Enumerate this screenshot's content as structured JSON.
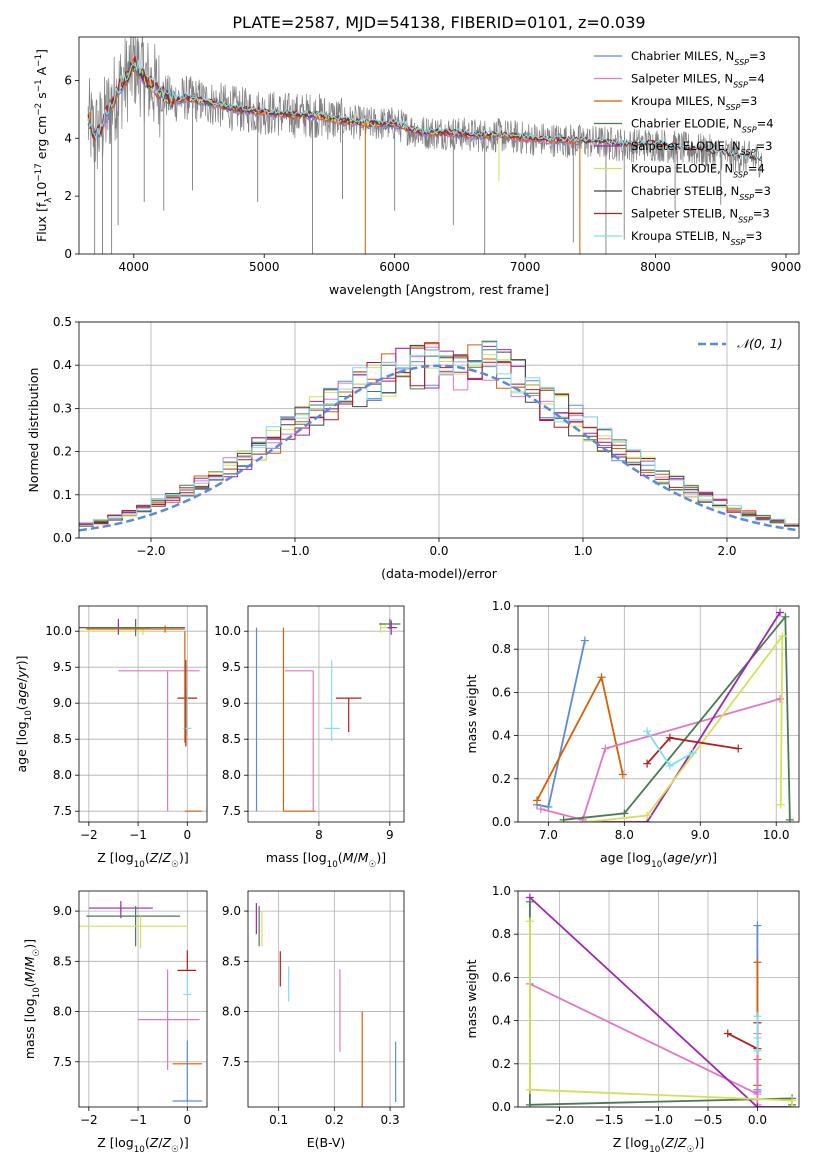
{
  "figure_title": "PLATE=2587, MJD=54138, FIBERID=0101, z=0.039",
  "colors": {
    "grid": "#b0b0b0",
    "data": "#808080",
    "norm": "#5b8bd8"
  },
  "chart_data": [
    {
      "id": "spectrum",
      "type": "line",
      "xlabel": "wavelength [Angstrom, rest frame]",
      "ylabel": "Flux [f_λ 10^-17 erg cm^-2 s^-1 A^-1]",
      "xlim": [
        3580,
        9100
      ],
      "ylim": [
        0,
        7.5
      ],
      "xticks": [
        4000,
        5000,
        6000,
        7000,
        8000,
        9000
      ],
      "yticks": [
        0,
        2,
        4,
        6
      ],
      "grid": false,
      "legend": "top-right",
      "series": [
        {
          "name": "Chabrier MILES, N_SSP=3",
          "color": "#5b8bd8",
          "x_range": [
            3650,
            7420
          ]
        },
        {
          "name": "Salpeter MILES, N_SSP=4",
          "color": "#e377c2",
          "x_range": [
            3650,
            7420
          ]
        },
        {
          "name": "Kroupa MILES, N_SSP=3",
          "color": "#d95f02",
          "x_range": [
            3650,
            7420
          ]
        },
        {
          "name": "Chabrier ELODIE, N_SSP=4",
          "color": "#4a7a52",
          "x_range": [
            3900,
            6800
          ]
        },
        {
          "name": "Salpeter ELODIE, N_SSP=3",
          "color": "#9c27b0",
          "x_range": [
            3900,
            6800
          ]
        },
        {
          "name": "Kroupa ELODIE, N_SSP=4",
          "color": "#d4e157",
          "x_range": [
            3900,
            6800
          ]
        },
        {
          "name": "Chabrier STELIB, N_SSP=3",
          "color": "#444444",
          "x_range": [
            3650,
            8820
          ]
        },
        {
          "name": "Salpeter STELIB, N_SSP=3",
          "color": "#b71c1c",
          "x_range": [
            3650,
            8820
          ]
        },
        {
          "name": "Kroupa STELIB, N_SSP=3",
          "color": "#80deea",
          "x_range": [
            3650,
            8820
          ]
        }
      ],
      "continuum": {
        "x": [
          3650,
          3700,
          3750,
          3800,
          3850,
          3900,
          3950,
          4000,
          4050,
          4100,
          4200,
          4300,
          4400,
          4500,
          4600,
          4800,
          5000,
          5200,
          5400,
          5600,
          5800,
          6000,
          6200,
          6400,
          6600,
          6800,
          7000,
          7200,
          7400,
          7600,
          7800,
          8000,
          8200,
          8400,
          8600,
          8800
        ],
        "y": [
          4.6,
          4.1,
          4.3,
          4.9,
          5.4,
          5.8,
          6.1,
          6.6,
          6.3,
          6.0,
          5.6,
          5.3,
          5.4,
          5.3,
          5.2,
          5.0,
          4.9,
          4.8,
          4.8,
          4.6,
          4.5,
          4.5,
          4.2,
          4.2,
          4.1,
          4.1,
          4.0,
          3.95,
          3.9,
          3.85,
          3.75,
          3.8,
          3.65,
          3.55,
          3.4,
          3.25
        ]
      },
      "data_spikes": [
        {
          "x": 3700,
          "y": 0
        },
        {
          "x": 3760,
          "y": 0
        },
        {
          "x": 3830,
          "y": 0
        },
        {
          "x": 3880,
          "y": 1.0
        },
        {
          "x": 4080,
          "y": 1.8
        },
        {
          "x": 4230,
          "y": 1.5
        },
        {
          "x": 4450,
          "y": 2.2
        },
        {
          "x": 4950,
          "y": 1.8
        },
        {
          "x": 5370,
          "y": 0
        },
        {
          "x": 5600,
          "y": 1.9
        },
        {
          "x": 6000,
          "y": 1.5
        },
        {
          "x": 6450,
          "y": 1.0
        },
        {
          "x": 6690,
          "y": 0
        },
        {
          "x": 7370,
          "y": 0.4
        },
        {
          "x": 7620,
          "y": 0
        },
        {
          "x": 7760,
          "y": 0.5
        },
        {
          "x": 8150,
          "y": 1.5
        },
        {
          "x": 8500,
          "y": 1.7
        }
      ],
      "model_spikes": [
        {
          "x": 5775,
          "y": 0,
          "color": "#d95f02"
        },
        {
          "x": 7420,
          "y": 0,
          "color": "#d95f02"
        },
        {
          "x": 6800,
          "y": 2.5,
          "color": "#d4e157"
        },
        {
          "x": 3665,
          "y": 4.9,
          "color": "#d95f02"
        }
      ]
    },
    {
      "id": "residuals",
      "type": "histogram",
      "xlabel": "(data-model)/error",
      "ylabel": "Normed distribution",
      "xlim": [
        -2.5,
        2.5
      ],
      "ylim": [
        0,
        0.5
      ],
      "xticks": [
        -2,
        -1,
        0,
        1,
        2
      ],
      "yticks": [
        0.0,
        0.1,
        0.2,
        0.3,
        0.4,
        0.5
      ],
      "grid": true,
      "legend": "top-right",
      "reference": {
        "name": "𝒩(0, 1)",
        "mu": 0,
        "sigma": 1
      },
      "bin_width": 0.1
    },
    {
      "id": "age-vs-Z",
      "type": "errorbar",
      "xlabel": "Z [log10(Z/Z☉)]",
      "ylabel": "age [log10(age/yr)]",
      "xlim": [
        -2.2,
        0.4
      ],
      "ylim": [
        7.35,
        10.35
      ],
      "xticks": [
        -2,
        -1,
        0
      ],
      "yticks": [
        7.5,
        8.0,
        8.5,
        9.0,
        9.5,
        10.0
      ],
      "grid": true,
      "points": [
        {
          "x": -0.9,
          "y": 10.0,
          "xerr": [
            1.35,
            0.1
          ],
          "yerr": [
            0.05,
            0.05
          ],
          "color": "#d4e157"
        },
        {
          "x": -1.4,
          "y": 10.05,
          "xerr": [
            0.8,
            0.65
          ],
          "yerr": [
            0.1,
            0.12
          ],
          "color": "#9c27b0"
        },
        {
          "x": -1.05,
          "y": 10.05,
          "xerr": [
            1.05,
            1.0
          ],
          "yerr": [
            0.12,
            0.12
          ],
          "color": "#4a7a52"
        },
        {
          "x": -0.45,
          "y": 10.03,
          "xerr": [
            1.6,
            0.4
          ],
          "yerr": [
            0.05,
            0.05
          ],
          "color": "#d95f02"
        },
        {
          "x": -0.4,
          "y": 9.45,
          "xerr": [
            1.0,
            0.65
          ],
          "yerr": [
            1.95,
            0.0
          ],
          "color": "#e377c2"
        },
        {
          "x": 0.0,
          "y": 9.07,
          "xerr": [
            0.2,
            0.2
          ],
          "yerr": [
            0.0,
            0.0
          ],
          "color": "#b71c1c"
        },
        {
          "x": -0.03,
          "y": 9.2,
          "xerr": [
            0.0,
            0.0
          ],
          "yerr": [
            0.8,
            0.4
          ],
          "color": "#b71c1c"
        },
        {
          "x": 0.0,
          "y": 8.65,
          "xerr": [
            0.08,
            0.08
          ],
          "yerr": [
            0.1,
            0.55
          ],
          "color": "#80deea"
        },
        {
          "x": -0.05,
          "y": 9.3,
          "xerr": [
            0.0,
            0.0
          ],
          "yerr": [
            0.85,
            0.7
          ],
          "color": "#d95f02"
        },
        {
          "x": 0.0,
          "y": 7.5,
          "xerr": [
            0.05,
            0.3
          ],
          "yerr": [
            0.0,
            0.0
          ],
          "color": "#d95f02"
        }
      ]
    },
    {
      "id": "age-vs-mass",
      "type": "errorbar",
      "xlabel": "mass [log10(M/M☉)]",
      "ylabel": "",
      "xlim": [
        7.0,
        9.2
      ],
      "ylim": [
        7.35,
        10.35
      ],
      "xticks": [
        8,
        9
      ],
      "yticks": [
        7.5,
        8.0,
        8.5,
        9.0,
        9.5,
        10.0
      ],
      "grid": true,
      "points": [
        {
          "x": 7.12,
          "y": 8.75,
          "xerr": [
            0.0,
            0.0
          ],
          "yerr": [
            1.25,
            1.3
          ],
          "color": "#5b8bd8"
        },
        {
          "x": 7.5,
          "y": 8.75,
          "xerr": [
            0.0,
            0.0
          ],
          "yerr": [
            1.25,
            1.3
          ],
          "color": "#d95f02"
        },
        {
          "x": 7.5,
          "y": 7.5,
          "xerr": [
            0.0,
            0.45
          ],
          "yerr": [
            0.0,
            0.0
          ],
          "color": "#d95f02"
        },
        {
          "x": 7.92,
          "y": 9.45,
          "xerr": [
            0.4,
            0.0
          ],
          "yerr": [
            1.95,
            0.0
          ],
          "color": "#e377c2"
        },
        {
          "x": 8.42,
          "y": 9.07,
          "xerr": [
            0.18,
            0.18
          ],
          "yerr": [
            0.47,
            0.0
          ],
          "color": "#b71c1c"
        },
        {
          "x": 8.18,
          "y": 8.65,
          "xerr": [
            0.1,
            0.12
          ],
          "yerr": [
            0.18,
            0.95
          ],
          "color": "#80deea"
        },
        {
          "x": 8.87,
          "y": 10.05,
          "xerr": [
            0.0,
            0.2
          ],
          "yerr": [
            0.07,
            0.07
          ],
          "color": "#d4e157"
        },
        {
          "x": 9.0,
          "y": 10.1,
          "xerr": [
            0.15,
            0.15
          ],
          "yerr": [
            0.07,
            0.07
          ],
          "color": "#4a7a52"
        },
        {
          "x": 9.02,
          "y": 10.05,
          "xerr": [
            0.05,
            0.08
          ],
          "yerr": [
            0.1,
            0.1
          ],
          "color": "#9c27b0"
        }
      ]
    },
    {
      "id": "weight-vs-age",
      "type": "line",
      "xlabel": "age [log10(age/yr)]",
      "ylabel": "mass weight",
      "xlim": [
        6.6,
        10.3
      ],
      "ylim": [
        0.0,
        1.0
      ],
      "xticks": [
        7,
        8,
        9,
        10
      ],
      "yticks": [
        0.0,
        0.2,
        0.4,
        0.6,
        0.8,
        1.0
      ],
      "grid": true,
      "series": [
        {
          "color": "#5b8bd8",
          "x": [
            6.85,
            7.0,
            7.48
          ],
          "y": [
            0.08,
            0.07,
            0.84
          ]
        },
        {
          "color": "#d95f02",
          "x": [
            6.85,
            7.7,
            7.98
          ],
          "y": [
            0.1,
            0.67,
            0.22
          ]
        },
        {
          "color": "#e377c2",
          "x": [
            6.9,
            7.45,
            7.75,
            10.05
          ],
          "y": [
            0.06,
            0.01,
            0.34,
            0.57
          ]
        },
        {
          "color": "#4a7a52",
          "x": [
            7.2,
            8.0,
            10.12,
            10.18
          ],
          "y": [
            0.01,
            0.04,
            0.95,
            0.01
          ]
        },
        {
          "color": "#9c27b0",
          "x": [
            7.5,
            8.3,
            10.05
          ],
          "y": [
            0.0,
            0.0,
            0.97
          ]
        },
        {
          "color": "#d4e157",
          "x": [
            7.5,
            8.3,
            10.08,
            10.06
          ],
          "y": [
            0.0,
            0.03,
            0.86,
            0.08
          ]
        },
        {
          "color": "#b71c1c",
          "x": [
            8.3,
            8.6,
            9.5
          ],
          "y": [
            0.27,
            0.39,
            0.34
          ]
        },
        {
          "color": "#80deea",
          "x": [
            8.3,
            8.6,
            8.9
          ],
          "y": [
            0.42,
            0.26,
            0.32
          ]
        }
      ]
    },
    {
      "id": "mass-vs-Z",
      "type": "errorbar",
      "xlabel": "Z [log10(Z/Z☉)]",
      "ylabel": "mass [log10(M/M☉)]",
      "xlim": [
        -2.2,
        0.4
      ],
      "ylim": [
        7.05,
        9.2
      ],
      "xticks": [
        -2,
        -1,
        0
      ],
      "yticks": [
        7.5,
        8.0,
        8.5,
        9.0
      ],
      "grid": true,
      "points": [
        {
          "x": -1.35,
          "y": 9.03,
          "xerr": [
            0.65,
            0.65
          ],
          "yerr": [
            0.1,
            0.07
          ],
          "color": "#9c27b0"
        },
        {
          "x": -1.05,
          "y": 8.95,
          "xerr": [
            1.0,
            0.9
          ],
          "yerr": [
            0.3,
            0.1
          ],
          "color": "#4a7a52"
        },
        {
          "x": -0.95,
          "y": 8.85,
          "xerr": [
            1.3,
            0.95
          ],
          "yerr": [
            0.22,
            0.1
          ],
          "color": "#d4e157"
        },
        {
          "x": -0.4,
          "y": 7.92,
          "xerr": [
            0.6,
            0.65
          ],
          "yerr": [
            0.5,
            0.5
          ],
          "color": "#e377c2"
        },
        {
          "x": 0.0,
          "y": 8.41,
          "xerr": [
            0.2,
            0.18
          ],
          "yerr": [
            0.0,
            0.2
          ],
          "color": "#b71c1c"
        },
        {
          "x": 0.0,
          "y": 8.17,
          "xerr": [
            0.08,
            0.08
          ],
          "yerr": [
            0.0,
            0.2
          ],
          "color": "#80deea"
        },
        {
          "x": 0.0,
          "y": 7.48,
          "xerr": [
            0.3,
            0.3
          ],
          "yerr": [
            0.0,
            0.0
          ],
          "color": "#d95f02"
        },
        {
          "x": 0.0,
          "y": 7.11,
          "xerr": [
            0.3,
            0.3
          ],
          "yerr": [
            0.0,
            0.6
          ],
          "color": "#5b8bd8"
        }
      ]
    },
    {
      "id": "mass-vs-EBV",
      "type": "errorbar",
      "xlabel": "E(B-V)",
      "ylabel": "",
      "xlim": [
        0.045,
        0.325
      ],
      "ylim": [
        7.05,
        9.2
      ],
      "xticks": [
        0.1,
        0.2,
        0.3
      ],
      "yticks": [
        7.5,
        8.0,
        8.5,
        9.0
      ],
      "grid": true,
      "points": [
        {
          "x": 0.06,
          "y": 8.9,
          "xerr": [
            0,
            0
          ],
          "yerr": [
            0.13,
            0.18
          ],
          "color": "#9c27b0"
        },
        {
          "x": 0.065,
          "y": 8.85,
          "xerr": [
            0,
            0
          ],
          "yerr": [
            0.2,
            0.2
          ],
          "color": "#4a7a52"
        },
        {
          "x": 0.07,
          "y": 8.85,
          "xerr": [
            0,
            0
          ],
          "yerr": [
            0.2,
            0.15
          ],
          "color": "#d4e157"
        },
        {
          "x": 0.103,
          "y": 8.45,
          "xerr": [
            0,
            0
          ],
          "yerr": [
            0.2,
            0.15
          ],
          "color": "#b71c1c"
        },
        {
          "x": 0.118,
          "y": 8.3,
          "xerr": [
            0,
            0
          ],
          "yerr": [
            0.2,
            0.15
          ],
          "color": "#80deea"
        },
        {
          "x": 0.21,
          "y": 8.0,
          "xerr": [
            0,
            0
          ],
          "yerr": [
            0.4,
            0.42
          ],
          "color": "#e377c2"
        },
        {
          "x": 0.25,
          "y": 7.4,
          "xerr": [
            0,
            0
          ],
          "yerr": [
            0.4,
            0.6
          ],
          "color": "#d95f02"
        },
        {
          "x": 0.31,
          "y": 7.4,
          "xerr": [
            0,
            0
          ],
          "yerr": [
            0.3,
            0.3
          ],
          "color": "#5b8bd8"
        }
      ]
    },
    {
      "id": "weight-vs-Z",
      "type": "line",
      "xlabel": "Z [log10(Z/Z☉)]",
      "ylabel": "mass weight",
      "xlim": [
        -2.42,
        0.42
      ],
      "ylim": [
        0.0,
        1.0
      ],
      "xticks": [
        -2.0,
        -1.5,
        -1.0,
        -0.5,
        0.0
      ],
      "yticks": [
        0.0,
        0.2,
        0.4,
        0.6,
        0.8,
        1.0
      ],
      "grid": true,
      "series": [
        {
          "color": "#5b8bd8",
          "x": [
            0.0,
            0.0,
            0.0
          ],
          "y": [
            0.84,
            0.07,
            0.08
          ]
        },
        {
          "color": "#d95f02",
          "x": [
            0.0,
            0.0,
            0.0
          ],
          "y": [
            0.67,
            0.22,
            0.1
          ]
        },
        {
          "color": "#e377c2",
          "x": [
            -2.3,
            0.0,
            0.0,
            0.0
          ],
          "y": [
            0.57,
            0.06,
            0.01,
            0.34
          ]
        },
        {
          "color": "#4a7a52",
          "x": [
            -2.3,
            -2.3,
            0.35,
            0.35
          ],
          "y": [
            0.95,
            0.01,
            0.04,
            0.01
          ]
        },
        {
          "color": "#9c27b0",
          "x": [
            -2.3,
            0.0,
            0.35
          ],
          "y": [
            0.97,
            0.0,
            0.0
          ]
        },
        {
          "color": "#d4e157",
          "x": [
            -2.3,
            -2.3,
            0.35,
            0.35
          ],
          "y": [
            0.86,
            0.08,
            0.03,
            0.0
          ]
        },
        {
          "color": "#b71c1c",
          "x": [
            -0.3,
            0.0,
            0.0
          ],
          "y": [
            0.34,
            0.27,
            0.39
          ]
        },
        {
          "color": "#80deea",
          "x": [
            0.0,
            0.0,
            0.0
          ],
          "y": [
            0.42,
            0.26,
            0.32
          ]
        }
      ]
    }
  ]
}
